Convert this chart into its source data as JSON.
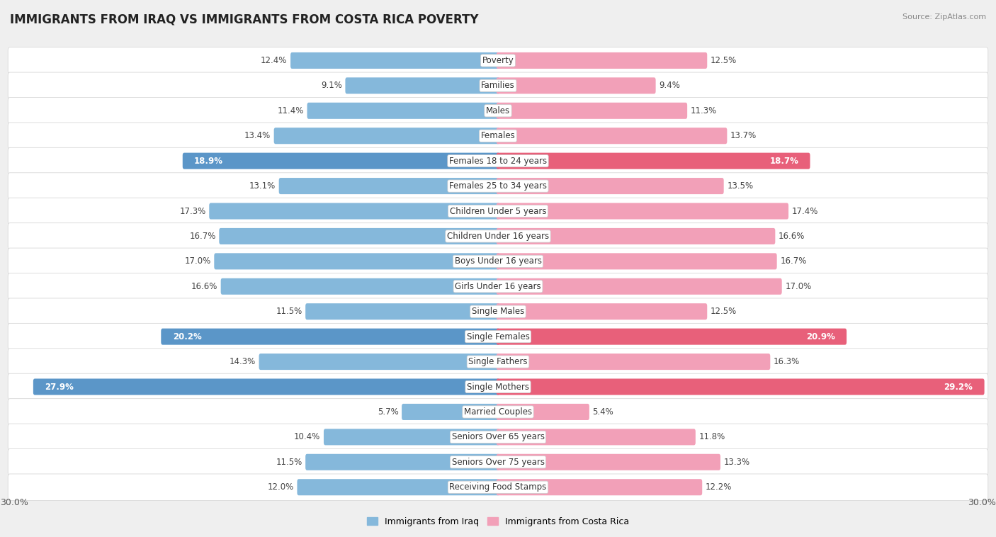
{
  "title": "IMMIGRANTS FROM IRAQ VS IMMIGRANTS FROM COSTA RICA POVERTY",
  "source": "Source: ZipAtlas.com",
  "categories": [
    "Poverty",
    "Families",
    "Males",
    "Females",
    "Females 18 to 24 years",
    "Females 25 to 34 years",
    "Children Under 5 years",
    "Children Under 16 years",
    "Boys Under 16 years",
    "Girls Under 16 years",
    "Single Males",
    "Single Females",
    "Single Fathers",
    "Single Mothers",
    "Married Couples",
    "Seniors Over 65 years",
    "Seniors Over 75 years",
    "Receiving Food Stamps"
  ],
  "iraq_values": [
    12.4,
    9.1,
    11.4,
    13.4,
    18.9,
    13.1,
    17.3,
    16.7,
    17.0,
    16.6,
    11.5,
    20.2,
    14.3,
    27.9,
    5.7,
    10.4,
    11.5,
    12.0
  ],
  "costa_rica_values": [
    12.5,
    9.4,
    11.3,
    13.7,
    18.7,
    13.5,
    17.4,
    16.6,
    16.7,
    17.0,
    12.5,
    20.9,
    16.3,
    29.2,
    5.4,
    11.8,
    13.3,
    12.2
  ],
  "iraq_color": "#85b8db",
  "costa_rica_color": "#f2a0b8",
  "iraq_highlight_color": "#5b96c8",
  "costa_rica_highlight_color": "#e8607a",
  "highlight_rows": [
    4,
    11,
    13
  ],
  "background_color": "#efefef",
  "row_bg_color": "#ffffff",
  "axis_max": 30.0,
  "legend_iraq": "Immigrants from Iraq",
  "legend_costa_rica": "Immigrants from Costa Rica",
  "label_fontsize": 8.5,
  "value_fontsize": 8.5,
  "title_fontsize": 12
}
